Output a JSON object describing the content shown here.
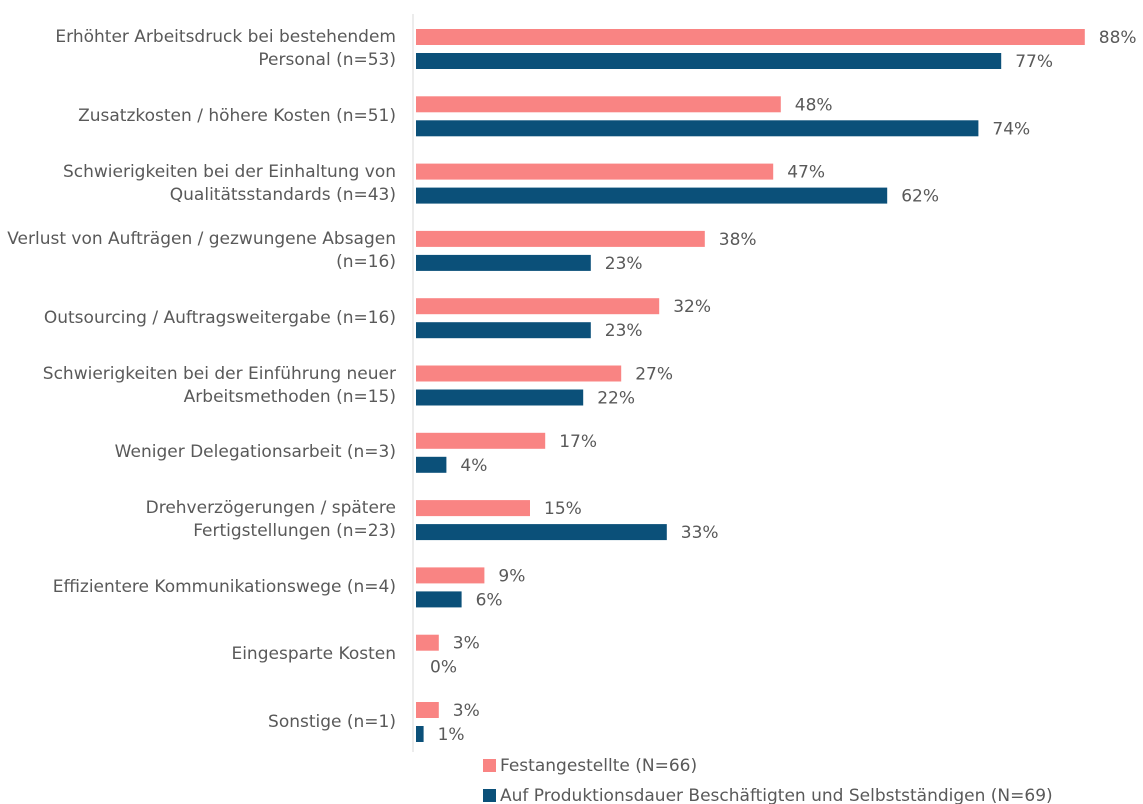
{
  "chart_data": {
    "type": "hbar",
    "categories": [
      "Erhöhter Arbeitsdruck bei bestehendem Personal (n=53)",
      "Zusatzkosten / höhere Kosten (n=51)",
      "Schwierigkeiten bei der Einhaltung von Qualitätsstandards (n=43)",
      "Verlust von Aufträgen / gezwungene Absagen (n=16)",
      "Outsourcing / Auftragsweitergabe (n=16)",
      "Schwierigkeiten bei der Einführung neuer Arbeitsmethoden (n=15)",
      "Weniger Delegationsarbeit (n=3)",
      "Drehverzögerungen / spätere Fertigstellungen (n=23)",
      "Effizientere Kommunikationswege (n=4)",
      "Eingesparte Kosten",
      "Sonstige (n=1)"
    ],
    "series": [
      {
        "name": "Festangestellte (N=66)",
        "color": "#f98483",
        "values": [
          88,
          48,
          47,
          38,
          32,
          27,
          17,
          15,
          9,
          3,
          3
        ],
        "value_labels": [
          "88%",
          "48%",
          "47%",
          "38%",
          "32%",
          "27%",
          "17%",
          "15%",
          "9%",
          "3%",
          "3%"
        ]
      },
      {
        "name": "Auf Produktionsdauer Beschäftigten und Selbstständigen (N=69)",
        "color": "#0b5079",
        "values": [
          77,
          74,
          62,
          23,
          23,
          22,
          4,
          33,
          6,
          0,
          1
        ],
        "value_labels": [
          "77%",
          "74%",
          "62%",
          "23%",
          "23%",
          "22%",
          "4%",
          "33%",
          "6%",
          "0%",
          "1%"
        ]
      }
    ],
    "xlim": [
      0,
      100
    ],
    "legend": "bottom"
  }
}
